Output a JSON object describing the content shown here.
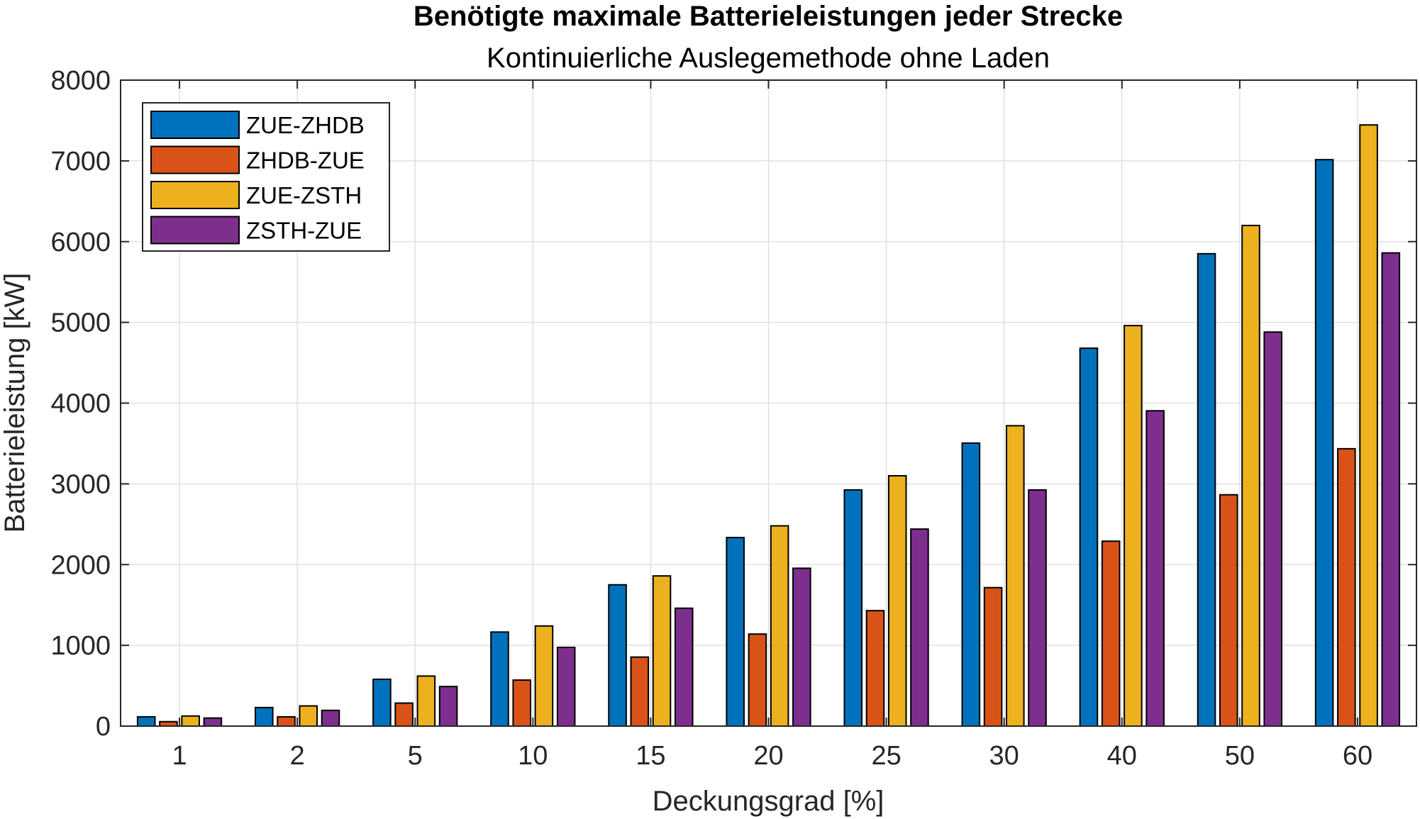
{
  "chart_data": {
    "type": "bar",
    "title": "Benötigte maximale Batterieleistungen jeder Strecke",
    "subtitle": "Kontinuierliche Auslegemethode ohne Laden",
    "xlabel": "Deckungsgrad [%]",
    "ylabel": "Batterieleistung [kW]",
    "categories": [
      "1",
      "2",
      "5",
      "10",
      "15",
      "20",
      "25",
      "30",
      "40",
      "50",
      "60"
    ],
    "ylim": [
      0,
      8000
    ],
    "yticks": [
      0,
      1000,
      2000,
      3000,
      4000,
      5000,
      6000,
      7000,
      8000
    ],
    "grid": true,
    "legend_position": "top-left",
    "series": [
      {
        "name": "ZUE-ZHDB",
        "color": "#0072BD",
        "values": [
          115,
          230,
          580,
          1165,
          1750,
          2335,
          2925,
          3505,
          4680,
          5850,
          7015
        ]
      },
      {
        "name": "ZHDB-ZUE",
        "color": "#D95319",
        "values": [
          55,
          115,
          285,
          570,
          855,
          1140,
          1430,
          1715,
          2290,
          2865,
          3435
        ]
      },
      {
        "name": "ZUE-ZSTH",
        "color": "#EDB120",
        "values": [
          125,
          250,
          620,
          1240,
          1860,
          2480,
          3100,
          3720,
          4960,
          6200,
          7445
        ]
      },
      {
        "name": "ZSTH-ZUE",
        "color": "#7E2F8E",
        "values": [
          100,
          195,
          490,
          975,
          1460,
          1955,
          2440,
          2925,
          3905,
          4880,
          5860
        ]
      }
    ]
  }
}
